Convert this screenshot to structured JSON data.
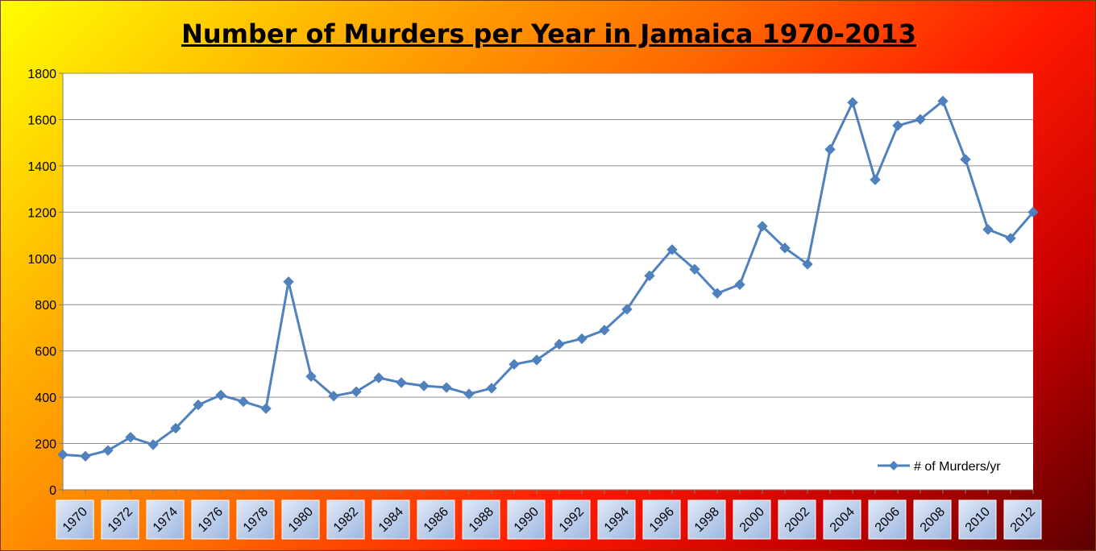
{
  "chart_data": {
    "type": "line",
    "title": "Number of Murders per Year in Jamaica 1970-2013",
    "xlabel": "",
    "ylabel": "",
    "ylim": [
      0,
      1800
    ],
    "yticks": [
      0,
      200,
      400,
      600,
      800,
      1000,
      1200,
      1400,
      1600,
      1800
    ],
    "x": [
      1970,
      1971,
      1972,
      1973,
      1974,
      1975,
      1976,
      1977,
      1978,
      1979,
      1980,
      1981,
      1982,
      1983,
      1984,
      1985,
      1986,
      1987,
      1988,
      1989,
      1990,
      1991,
      1992,
      1993,
      1994,
      1995,
      1996,
      1997,
      1998,
      1999,
      2000,
      2001,
      2002,
      2003,
      2004,
      2005,
      2006,
      2007,
      2008,
      2009,
      2010,
      2011,
      2012,
      2013
    ],
    "xtick_labels": [
      "1970",
      "1972",
      "1974",
      "1976",
      "1978",
      "1980",
      "1982",
      "1984",
      "1986",
      "1988",
      "1990",
      "1992",
      "1994",
      "1996",
      "1998",
      "2000",
      "2002",
      "2004",
      "2006",
      "2008",
      "2010",
      "2012"
    ],
    "grid": true,
    "legend_position": "bottom-right",
    "series": [
      {
        "name": "# of Murders/yr",
        "color": "#4f81bd",
        "values": [
          152,
          145,
          170,
          227,
          195,
          266,
          367,
          409,
          381,
          351,
          899,
          490,
          405,
          424,
          484,
          463,
          449,
          442,
          414,
          439,
          542,
          561,
          629,
          653,
          690,
          780,
          925,
          1038,
          953,
          849,
          887,
          1139,
          1045,
          975,
          1471,
          1674,
          1340,
          1574,
          1601,
          1680,
          1428,
          1125,
          1087,
          1200
        ]
      }
    ]
  }
}
